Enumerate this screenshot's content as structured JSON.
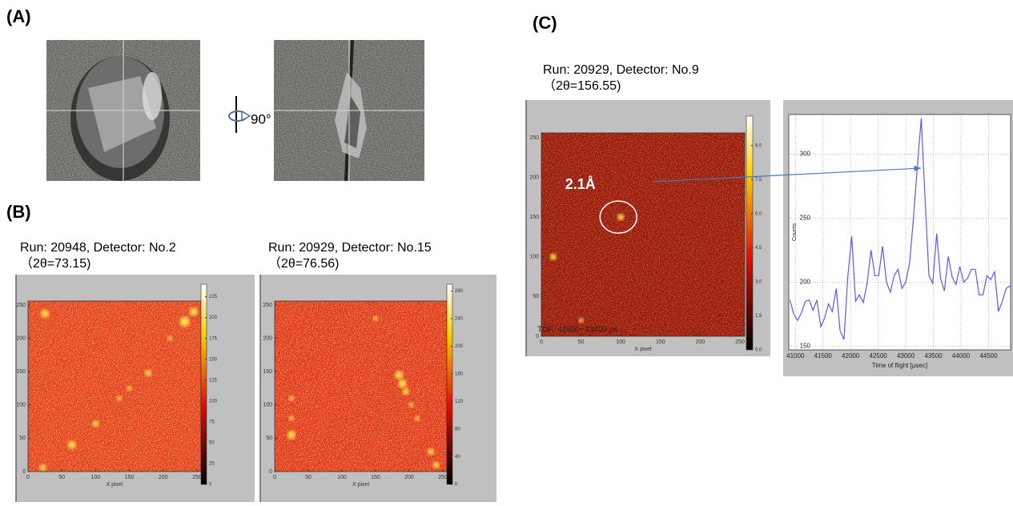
{
  "panel_labels": [
    "(A)",
    "(B)",
    "(C)"
  ],
  "rotation_label": "90°",
  "chart_data": [
    {
      "type": "heatmap",
      "title": "Run: 20948, Detector: No.2",
      "subtitle": "（2θ=73.15)",
      "xlabel": "X pixel",
      "xlim": [
        0,
        256
      ],
      "ylim": [
        0,
        256
      ],
      "xticks": [
        0,
        50,
        100,
        150,
        200,
        250
      ],
      "yticks": [
        0,
        50,
        100,
        150,
        200,
        250
      ],
      "clim": [
        0,
        240
      ],
      "cbar_ticks": [
        0,
        25,
        50,
        75,
        100,
        125,
        150,
        175,
        200,
        225
      ]
    },
    {
      "type": "heatmap",
      "title": "Run: 20929, Detector: No.15",
      "subtitle": "（2θ=76.56)",
      "xlabel": "X pixel",
      "xlim": [
        0,
        256
      ],
      "ylim": [
        0,
        256
      ],
      "xticks": [
        0,
        50,
        100,
        150,
        200,
        250
      ],
      "yticks": [
        0,
        50,
        100,
        150,
        200,
        250
      ],
      "clim": [
        0,
        290
      ],
      "cbar_ticks": [
        0,
        40,
        80,
        120,
        160,
        200,
        240,
        280
      ]
    },
    {
      "type": "heatmap",
      "title": "Run: 20929, Detector: No.9",
      "subtitle": "（2θ=156.55)",
      "xlabel": "X pixel",
      "xlim": [
        0,
        256
      ],
      "ylim": [
        0,
        256
      ],
      "xticks": [
        0,
        50,
        100,
        150,
        200,
        250
      ],
      "yticks": [
        0,
        50,
        100,
        150,
        200,
        250
      ],
      "clim": [
        0,
        10.3
      ],
      "cbar_ticks": [
        {
          "value": 0,
          "label": "0.0"
        },
        {
          "value": 1.5,
          "label": "1.5"
        },
        {
          "value": 3,
          "label": "3.0"
        },
        {
          "value": 4.5,
          "label": "4.5"
        },
        {
          "value": 6,
          "label": "6.0"
        },
        {
          "value": 7.5,
          "label": "7.5"
        },
        {
          "value": 9,
          "label": "9.0"
        }
      ],
      "annotations": [
        "2.1Å",
        "TOF: 42600~43400 μs"
      ]
    },
    {
      "type": "line",
      "xlabel": "Time of flight [μsec]",
      "ylabel": "Counts",
      "color": "#5a5af0",
      "grid": true,
      "xlim": [
        40880,
        44900
      ],
      "ylim": [
        147,
        331
      ],
      "xticks": [
        41000,
        41500,
        42000,
        42500,
        43000,
        43500,
        44000,
        44500
      ],
      "yticks": [
        150,
        200,
        250,
        300
      ],
      "x": [
        40900,
        40970,
        41040,
        41110,
        41180,
        41250,
        41320,
        41390,
        41460,
        41530,
        41600,
        41670,
        41740,
        41810,
        41880,
        41950,
        42020,
        42090,
        42160,
        42230,
        42300,
        42370,
        42440,
        42510,
        42580,
        42650,
        42720,
        42790,
        42860,
        42930,
        43000,
        43070,
        43140,
        43210,
        43280,
        43350,
        43420,
        43490,
        43560,
        43630,
        43700,
        43770,
        43840,
        43910,
        43980,
        44050,
        44120,
        44190,
        44260,
        44330,
        44400,
        44470,
        44540,
        44610,
        44680,
        44750,
        44820,
        44890
      ],
      "values": [
        186,
        175,
        170,
        176,
        185,
        186,
        178,
        186,
        165,
        172,
        183,
        177,
        195,
        162,
        155,
        204,
        236,
        185,
        190,
        184,
        199,
        225,
        205,
        205,
        228,
        200,
        192,
        205,
        210,
        195,
        200,
        215,
        250,
        290,
        328,
        265,
        205,
        199,
        238,
        203,
        193,
        220,
        204,
        198,
        212,
        200,
        203,
        210,
        210,
        190,
        190,
        205,
        202,
        208,
        177,
        185,
        195,
        197
      ]
    }
  ]
}
